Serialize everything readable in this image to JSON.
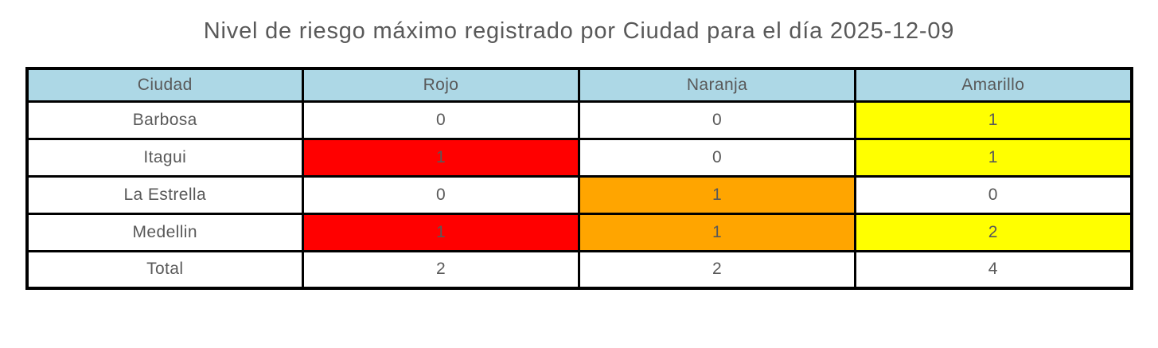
{
  "title": "Nivel de riesgo máximo registrado por Ciudad para el día 2025-12-09",
  "colors": {
    "header_bg": "#add8e6",
    "cell_red": "#ff0000",
    "cell_orange": "#ffa500",
    "cell_yellow": "#ffff00",
    "cell_default": "#ffffff",
    "text": "#595959",
    "border": "#000000"
  },
  "chart_data": {
    "type": "table",
    "title": "Nivel de riesgo máximo registrado por Ciudad para el día 2025-12-09",
    "columns": [
      "Ciudad",
      "Rojo",
      "Naranja",
      "Amarillo"
    ],
    "header_bg": "#add8e6",
    "rows": [
      [
        "Barbosa",
        0,
        0,
        1
      ],
      [
        "Itagui",
        1,
        0,
        1
      ],
      [
        "La Estrella",
        0,
        1,
        0
      ],
      [
        "Medellin",
        1,
        1,
        2
      ],
      [
        "Total",
        2,
        2,
        4
      ]
    ],
    "cell_colors": [
      [
        "#ffffff",
        "#ffffff",
        "#ffffff",
        "#ffff00"
      ],
      [
        "#ffffff",
        "#ff0000",
        "#ffffff",
        "#ffff00"
      ],
      [
        "#ffffff",
        "#ffffff",
        "#ffa500",
        "#ffffff"
      ],
      [
        "#ffffff",
        "#ff0000",
        "#ffa500",
        "#ffff00"
      ],
      [
        "#ffffff",
        "#ffffff",
        "#ffffff",
        "#ffffff"
      ]
    ]
  }
}
